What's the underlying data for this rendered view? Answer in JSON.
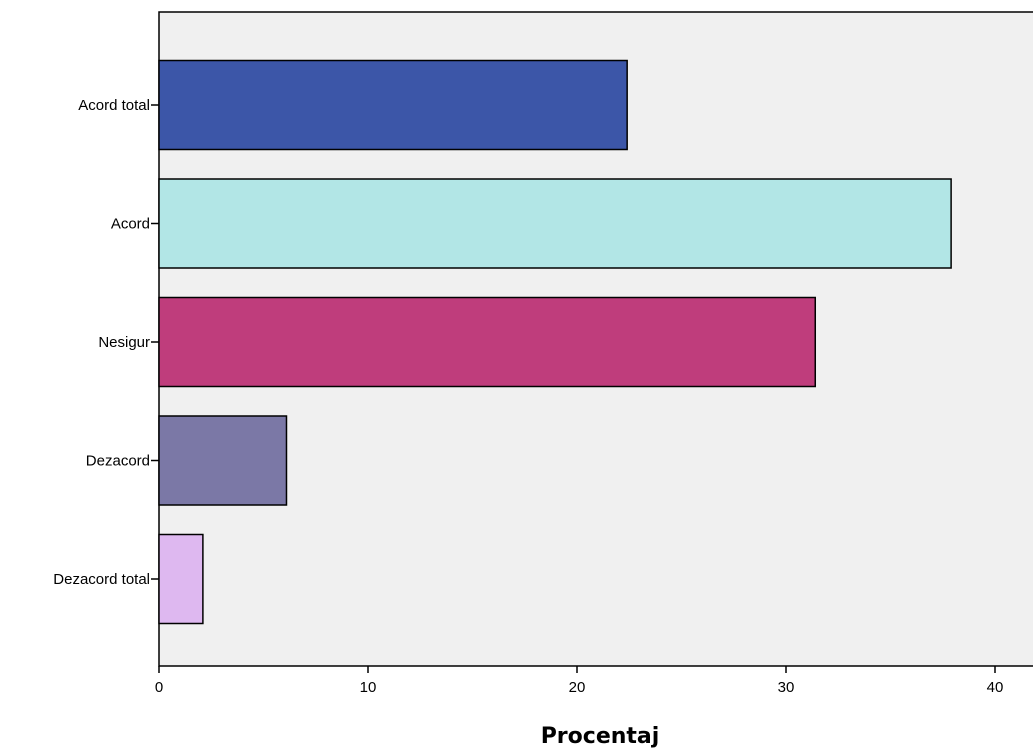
{
  "chart_data": {
    "type": "bar",
    "orientation": "horizontal",
    "title": "",
    "xlabel": "Procentaj",
    "ylabel": "",
    "categories": [
      "Acord total",
      "Acord",
      "Nesigur",
      "Dezacord",
      "Dezacord total"
    ],
    "values": [
      22.4,
      37.9,
      31.4,
      6.1,
      2.1
    ],
    "colors": [
      "#3c56a8",
      "#b2e6e6",
      "#bf3d7c",
      "#7b78a6",
      "#deb8f0"
    ],
    "xlim": [
      0,
      40
    ],
    "xticks": [
      "0",
      "10",
      "20",
      "30",
      "40"
    ],
    "grid": false,
    "legend": "none",
    "plot_background": "#f0f0f0"
  }
}
